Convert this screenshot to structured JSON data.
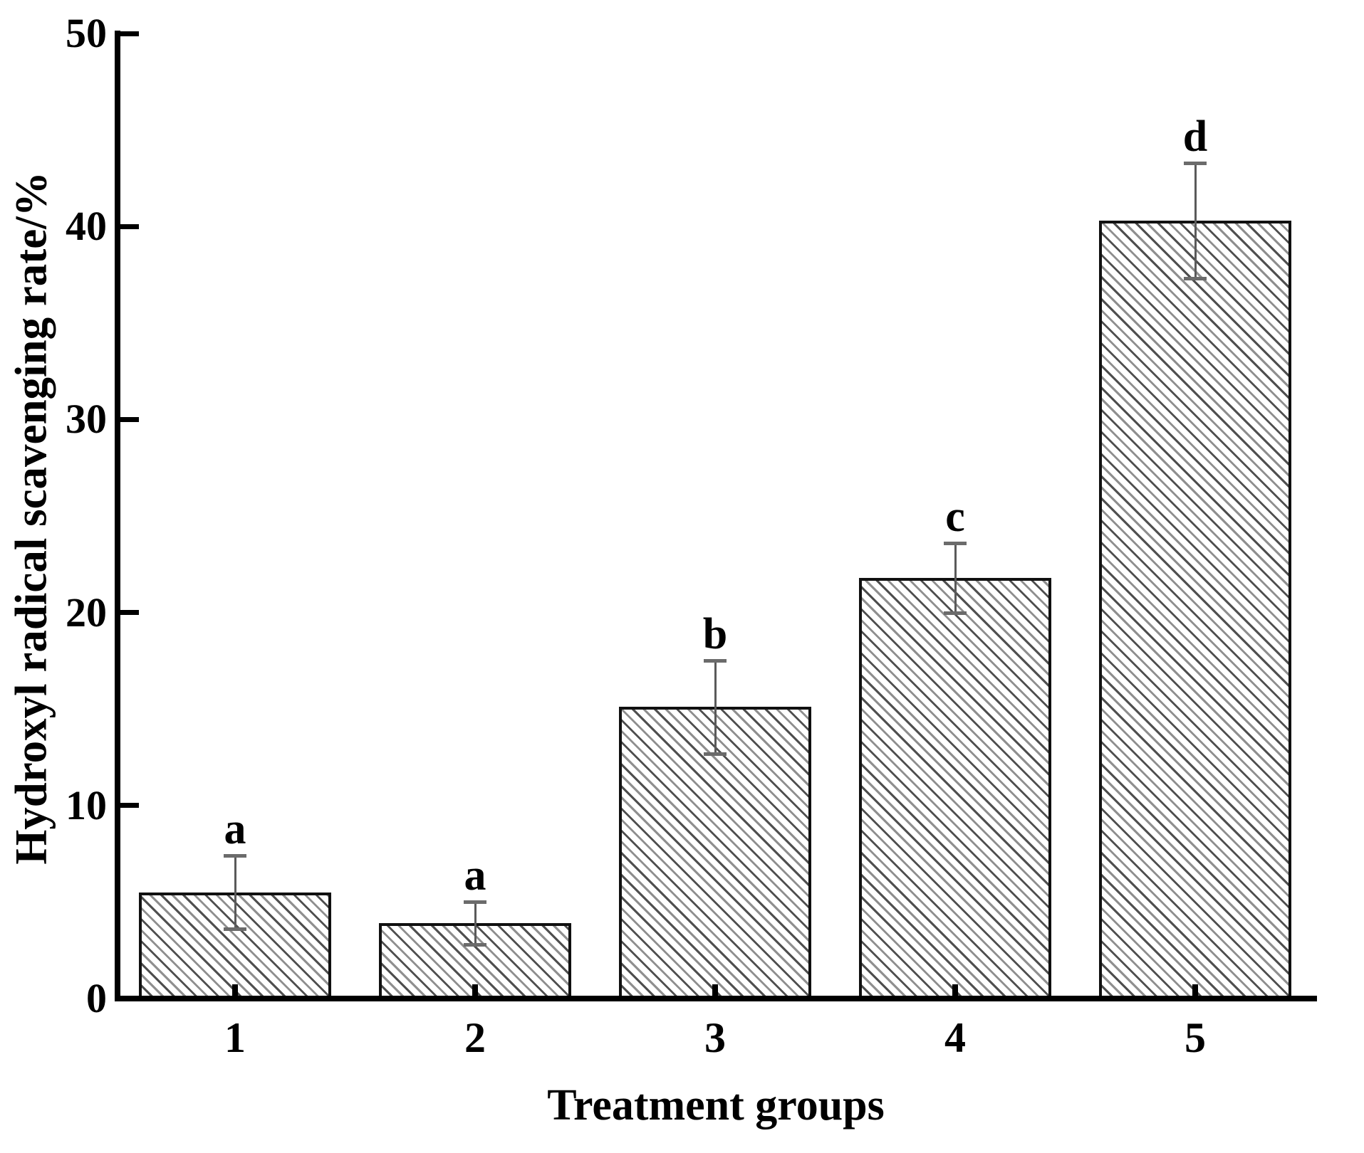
{
  "figure": {
    "background": "#ffffff",
    "text_color": "#000000",
    "axis_color": "#000000"
  },
  "chart_data": {
    "type": "bar",
    "title": "",
    "categories": [
      "1",
      "2",
      "3",
      "4",
      "5"
    ],
    "values": [
      5.5,
      3.9,
      15.1,
      21.8,
      40.3
    ],
    "errors": [
      1.9,
      1.1,
      2.4,
      1.8,
      3.0
    ],
    "sig_letters": [
      "a",
      "a",
      "b",
      "c",
      "d"
    ],
    "xlabel": "Treatment groups",
    "ylabel": "Hydroxyl radical scavenging rate/%",
    "ylim": [
      0,
      50
    ],
    "yticks": [
      0,
      10,
      20,
      30,
      40,
      50
    ],
    "ytick_labels": [
      "0",
      "10",
      "20",
      "30",
      "40",
      "50"
    ],
    "grid": false,
    "legend_position": "none",
    "bar_style": {
      "fill": "#ffffff",
      "hatch": "diagonal-backslash",
      "hatch_color_dark": "#4f4f4f",
      "hatch_color_light": "#8f8f8f",
      "border_color": "#111111"
    },
    "error_bar_color": "#5a5a5a"
  }
}
